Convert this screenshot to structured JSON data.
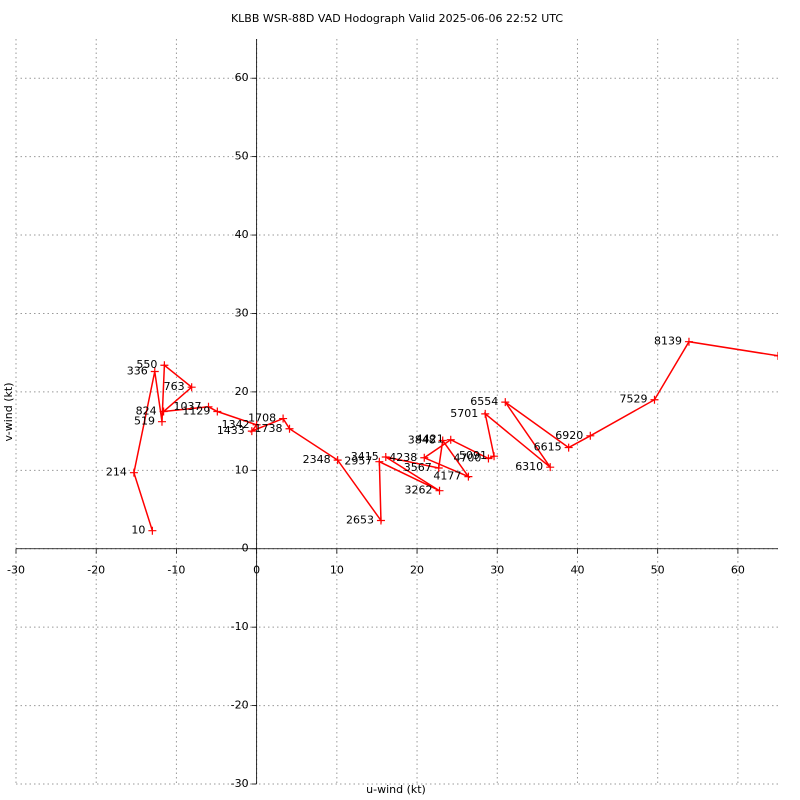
{
  "chart_data": {
    "type": "line",
    "title": "KLBB WSR-88D VAD Hodograph Valid 2025-06-06 22:52 UTC",
    "x_label": "u-wind (kt)",
    "y_label": "v-wind (kt)",
    "color": "#ff0000",
    "grid": true,
    "xlim": [
      -30,
      65
    ],
    "ylim": [
      -30,
      65
    ],
    "xticks": [
      -30,
      -20,
      -10,
      0,
      10,
      20,
      30,
      40,
      50,
      60
    ],
    "yticks": [
      -30,
      -20,
      -10,
      0,
      10,
      20,
      30,
      40,
      50,
      60
    ],
    "point_labels": [
      10,
      214,
      336,
      519,
      550,
      763,
      824,
      1037,
      1129,
      1342,
      1433,
      1708,
      1738,
      2348,
      2653,
      2957,
      3262,
      3415,
      3567,
      3848,
      4177,
      4238,
      4421,
      4700,
      5091,
      5701,
      6310,
      6554,
      6615,
      6920,
      7529,
      8139,
      null
    ],
    "x": [
      -13.0,
      -15.3,
      -12.7,
      -11.8,
      -11.5,
      -8.1,
      -11.6,
      -6.0,
      -4.9,
      0.0,
      -0.6,
      3.3,
      4.1,
      10.1,
      15.5,
      15.3,
      22.8,
      16.1,
      22.7,
      23.2,
      26.4,
      20.9,
      24.2,
      28.9,
      29.6,
      28.5,
      36.6,
      31.0,
      38.9,
      41.6,
      49.6,
      53.9,
      65.0
    ],
    "values": [
      2.3,
      9.7,
      22.6,
      16.2,
      23.4,
      20.6,
      17.5,
      18.1,
      17.5,
      15.8,
      15.0,
      16.6,
      15.3,
      11.3,
      3.6,
      11.1,
      7.4,
      11.7,
      10.3,
      13.8,
      9.2,
      11.6,
      13.9,
      11.5,
      11.8,
      17.2,
      10.4,
      18.7,
      12.9,
      14.4,
      19.0,
      26.4,
      24.6
    ]
  }
}
